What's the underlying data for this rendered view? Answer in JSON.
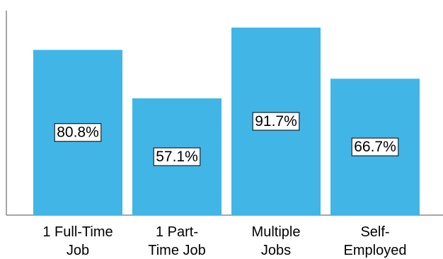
{
  "chart_data": {
    "type": "bar",
    "title": "",
    "xlabel": "",
    "ylabel": "",
    "categories": [
      [
        "1 Full-Time",
        "Job"
      ],
      [
        "1 Part-",
        "Time Job"
      ],
      [
        "Multiple",
        "Jobs"
      ],
      [
        "Self-",
        "Employed"
      ]
    ],
    "values": [
      80.8,
      57.1,
      91.7,
      66.7
    ],
    "data_labels": [
      "80.8%",
      "57.1%",
      "91.7%",
      "66.7%"
    ],
    "ylim": [
      0,
      100
    ],
    "y_axis_visible": true,
    "y_tick_labels_shown": false,
    "grid": false,
    "legend": "none",
    "bar_color": "#41B6E6",
    "data_label_box_fill": "#ffffff",
    "data_label_box_stroke": "#000000",
    "axis_color": "#8a8a8a",
    "text_color": "#000000"
  }
}
